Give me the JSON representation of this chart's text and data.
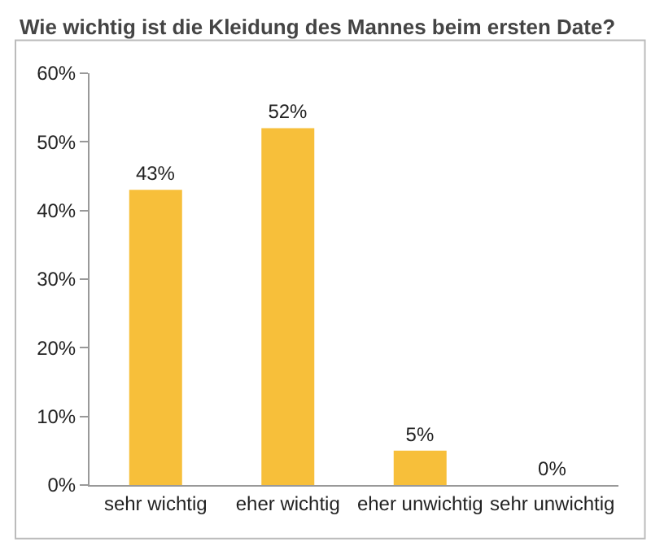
{
  "chart_data": {
    "type": "bar",
    "title": "Wie wichtig ist die Kleidung des Mannes beim ersten Date?",
    "categories": [
      "sehr wichtig",
      "eher wichtig",
      "eher unwichtig",
      "sehr unwichtig"
    ],
    "values": [
      43,
      52,
      5,
      0
    ],
    "value_labels": [
      "43%",
      "52%",
      "5%",
      "0%"
    ],
    "color": "#f7bf3a",
    "ylim": [
      0,
      60
    ],
    "yticks": [
      {
        "value": 0,
        "label": "0%"
      },
      {
        "value": 10,
        "label": "10%"
      },
      {
        "value": 20,
        "label": "20%"
      },
      {
        "value": 30,
        "label": "30%"
      },
      {
        "value": 40,
        "label": "40%"
      },
      {
        "value": 50,
        "label": "50%"
      },
      {
        "value": 60,
        "label": "60%"
      }
    ],
    "grid": false,
    "legend": false
  }
}
